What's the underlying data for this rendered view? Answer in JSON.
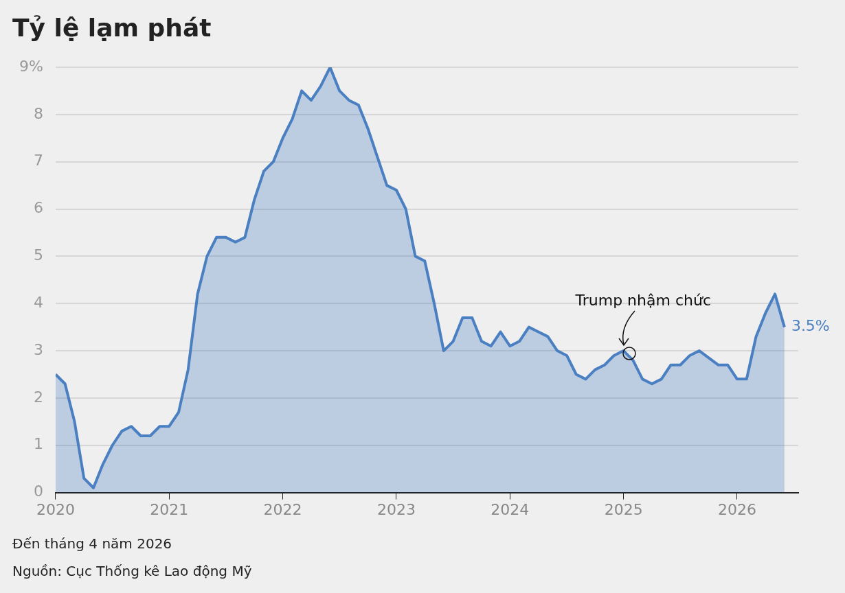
{
  "chart_data": {
    "type": "area",
    "title": "Tỷ lệ lạm phát",
    "x": [
      "2020-01",
      "2020-02",
      "2020-03",
      "2020-04",
      "2020-05",
      "2020-06",
      "2020-07",
      "2020-08",
      "2020-09",
      "2020-10",
      "2020-11",
      "2020-12",
      "2021-01",
      "2021-02",
      "2021-03",
      "2021-04",
      "2021-05",
      "2021-06",
      "2021-07",
      "2021-08",
      "2021-09",
      "2021-10",
      "2021-11",
      "2021-12",
      "2022-01",
      "2022-02",
      "2022-03",
      "2022-04",
      "2022-05",
      "2022-06",
      "2022-07",
      "2022-08",
      "2022-09",
      "2022-10",
      "2022-11",
      "2022-12",
      "2023-01",
      "2023-02",
      "2023-03",
      "2023-04",
      "2023-05",
      "2023-06",
      "2023-07",
      "2023-08",
      "2023-09",
      "2023-10",
      "2023-11",
      "2023-12",
      "2024-01",
      "2024-02",
      "2024-03",
      "2024-04",
      "2024-05",
      "2024-06",
      "2024-07",
      "2024-08",
      "2024-09",
      "2024-10",
      "2024-11",
      "2024-12",
      "2025-01",
      "2025-02",
      "2025-03",
      "2025-04",
      "2025-05",
      "2025-06",
      "2025-07",
      "2025-08",
      "2025-09",
      "2025-10",
      "2025-11",
      "2025-12",
      "2026-01",
      "2026-02",
      "2026-03",
      "2026-04",
      "2026-05",
      "2026-06"
    ],
    "series": [
      {
        "color": "#4a7fc1",
        "values": [
          2.5,
          2.3,
          1.5,
          0.3,
          0.1,
          0.6,
          1.0,
          1.3,
          1.4,
          1.2,
          1.2,
          1.4,
          1.4,
          1.7,
          2.6,
          4.2,
          5.0,
          5.4,
          5.4,
          5.3,
          5.4,
          6.2,
          6.8,
          7.0,
          7.5,
          7.9,
          8.5,
          8.3,
          8.6,
          9.0,
          8.5,
          8.3,
          8.2,
          7.7,
          7.1,
          6.5,
          6.4,
          6.0,
          5.0,
          4.9,
          4.0,
          3.0,
          3.2,
          3.7,
          3.7,
          3.2,
          3.1,
          3.4,
          3.1,
          3.2,
          3.5,
          3.4,
          3.3,
          3.0,
          2.9,
          2.5,
          2.4,
          2.6,
          2.7,
          2.9,
          3.0,
          2.8,
          2.4,
          2.3,
          2.4,
          2.7,
          2.7,
          2.9,
          3.0,
          2.85,
          2.7,
          2.7,
          2.4,
          2.4,
          3.3,
          3.8,
          4.2,
          3.5
        ],
        "value_labels": [
          null,
          null,
          null,
          null,
          null,
          null,
          null,
          null,
          null,
          null,
          null,
          null,
          null,
          null,
          null,
          null,
          null,
          null,
          null,
          null,
          null,
          null,
          null,
          null,
          null,
          null,
          null,
          null,
          null,
          null,
          null,
          null,
          null,
          null,
          null,
          null,
          null,
          null,
          null,
          null,
          null,
          null,
          null,
          null,
          null,
          null,
          null,
          null,
          null,
          null,
          null,
          null,
          null,
          null,
          null,
          null,
          null,
          null,
          null,
          null,
          null,
          null,
          null,
          null,
          null,
          null,
          null,
          null,
          null,
          null,
          null,
          null,
          null,
          null,
          null,
          null,
          null,
          "3.5%"
        ]
      }
    ],
    "xlim": [
      "2020-01",
      "2026-07-15"
    ],
    "xticks": [
      "2020",
      "2021",
      "2022",
      "2023",
      "2024",
      "2025",
      "2026"
    ],
    "ylim": [
      0,
      9
    ],
    "yticks": [
      0,
      1,
      2,
      3,
      4,
      5,
      6,
      7,
      8,
      {
        "value": 9,
        "label": "9%"
      }
    ],
    "grid": "y",
    "marker": "none",
    "line_style": "solid",
    "annotations": [
      {
        "text": "Trump nhậm chức",
        "x": "2025-01-20",
        "y": 2.95
      },
      "Đến tháng 4 năm 2026",
      "Nguồn: Cục Thống kê Lao động Mỹ"
    ]
  }
}
